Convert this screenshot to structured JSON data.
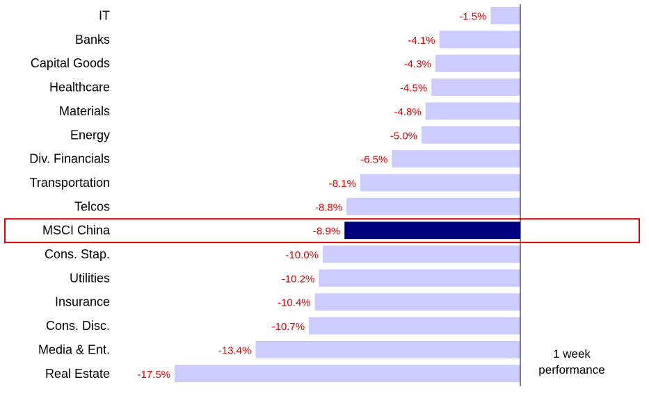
{
  "chart_data": {
    "type": "bar",
    "orientation": "horizontal",
    "categories": [
      "IT",
      "Banks",
      "Capital Goods",
      "Healthcare",
      "Materials",
      "Energy",
      "Div. Financials",
      "Transportation",
      "Telcos",
      "MSCI China",
      "Cons. Stap.",
      "Utilities",
      "Insurance",
      "Cons. Disc.",
      "Media & Ent.",
      "Real Estate"
    ],
    "values": [
      -1.5,
      -4.1,
      -4.3,
      -4.5,
      -4.8,
      -5.0,
      -6.5,
      -8.1,
      -8.8,
      -8.9,
      -10.0,
      -10.2,
      -10.4,
      -10.7,
      -13.4,
      -17.5
    ],
    "value_labels": [
      "-1.5%",
      "-4.1%",
      "-4.3%",
      "-4.5%",
      "-4.8%",
      "-5.0%",
      "-6.5%",
      "-8.1%",
      "-8.8%",
      "-8.9%",
      "-10.0%",
      "-10.2%",
      "-10.4%",
      "-10.7%",
      "-13.4%",
      "-17.5%"
    ],
    "highlighted_category": "MSCI China",
    "annotation": [
      "1 week",
      "performance"
    ],
    "grid": false,
    "legend": "none"
  },
  "colors": {
    "bar": "#ccccff",
    "highlight_bar": "#000080",
    "value_label": "#e00000",
    "highlight_box": "#e00000",
    "axis": "#000000"
  }
}
